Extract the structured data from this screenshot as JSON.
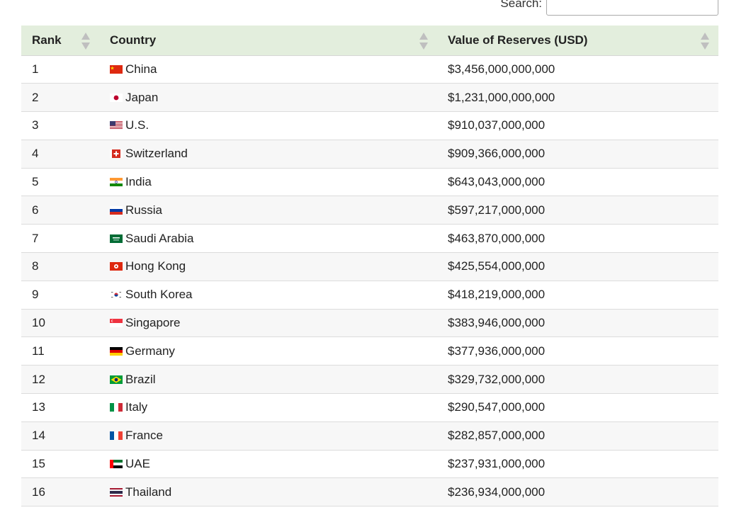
{
  "search": {
    "label": "Search:",
    "value": ""
  },
  "table": {
    "headers": {
      "rank": "Rank",
      "country": "Country",
      "value": "Value of Reserves (USD)"
    },
    "rows": [
      {
        "rank": "1",
        "country": "China",
        "flag": "cn-flag-icon",
        "value": "$3,456,000,000,000"
      },
      {
        "rank": "2",
        "country": "Japan",
        "flag": "jp-flag-icon",
        "value": "$1,231,000,000,000"
      },
      {
        "rank": "3",
        "country": "U.S.",
        "flag": "us-flag-icon",
        "value": "$910,037,000,000"
      },
      {
        "rank": "4",
        "country": "Switzerland",
        "flag": "ch-flag-icon",
        "value": "$909,366,000,000"
      },
      {
        "rank": "5",
        "country": "India",
        "flag": "in-flag-icon",
        "value": "$643,043,000,000"
      },
      {
        "rank": "6",
        "country": "Russia",
        "flag": "ru-flag-icon",
        "value": "$597,217,000,000"
      },
      {
        "rank": "7",
        "country": "Saudi Arabia",
        "flag": "sa-flag-icon",
        "value": "$463,870,000,000"
      },
      {
        "rank": "8",
        "country": "Hong Kong",
        "flag": "hk-flag-icon",
        "value": "$425,554,000,000"
      },
      {
        "rank": "9",
        "country": "South Korea",
        "flag": "kr-flag-icon",
        "value": "$418,219,000,000"
      },
      {
        "rank": "10",
        "country": "Singapore",
        "flag": "sg-flag-icon",
        "value": "$383,946,000,000"
      },
      {
        "rank": "11",
        "country": "Germany",
        "flag": "de-flag-icon",
        "value": "$377,936,000,000"
      },
      {
        "rank": "12",
        "country": "Brazil",
        "flag": "br-flag-icon",
        "value": "$329,732,000,000"
      },
      {
        "rank": "13",
        "country": "Italy",
        "flag": "it-flag-icon",
        "value": "$290,547,000,000"
      },
      {
        "rank": "14",
        "country": "France",
        "flag": "fr-flag-icon",
        "value": "$282,857,000,000"
      },
      {
        "rank": "15",
        "country": "UAE",
        "flag": "ae-flag-icon",
        "value": "$237,931,000,000"
      },
      {
        "rank": "16",
        "country": "Thailand",
        "flag": "th-flag-icon",
        "value": "$236,934,000,000"
      }
    ]
  },
  "colors": {
    "header_bg": "#e3eedd",
    "stripe_bg": "#f7f7f7",
    "border": "#dcdcdc",
    "sort_arrow": "#bfbfbf"
  }
}
